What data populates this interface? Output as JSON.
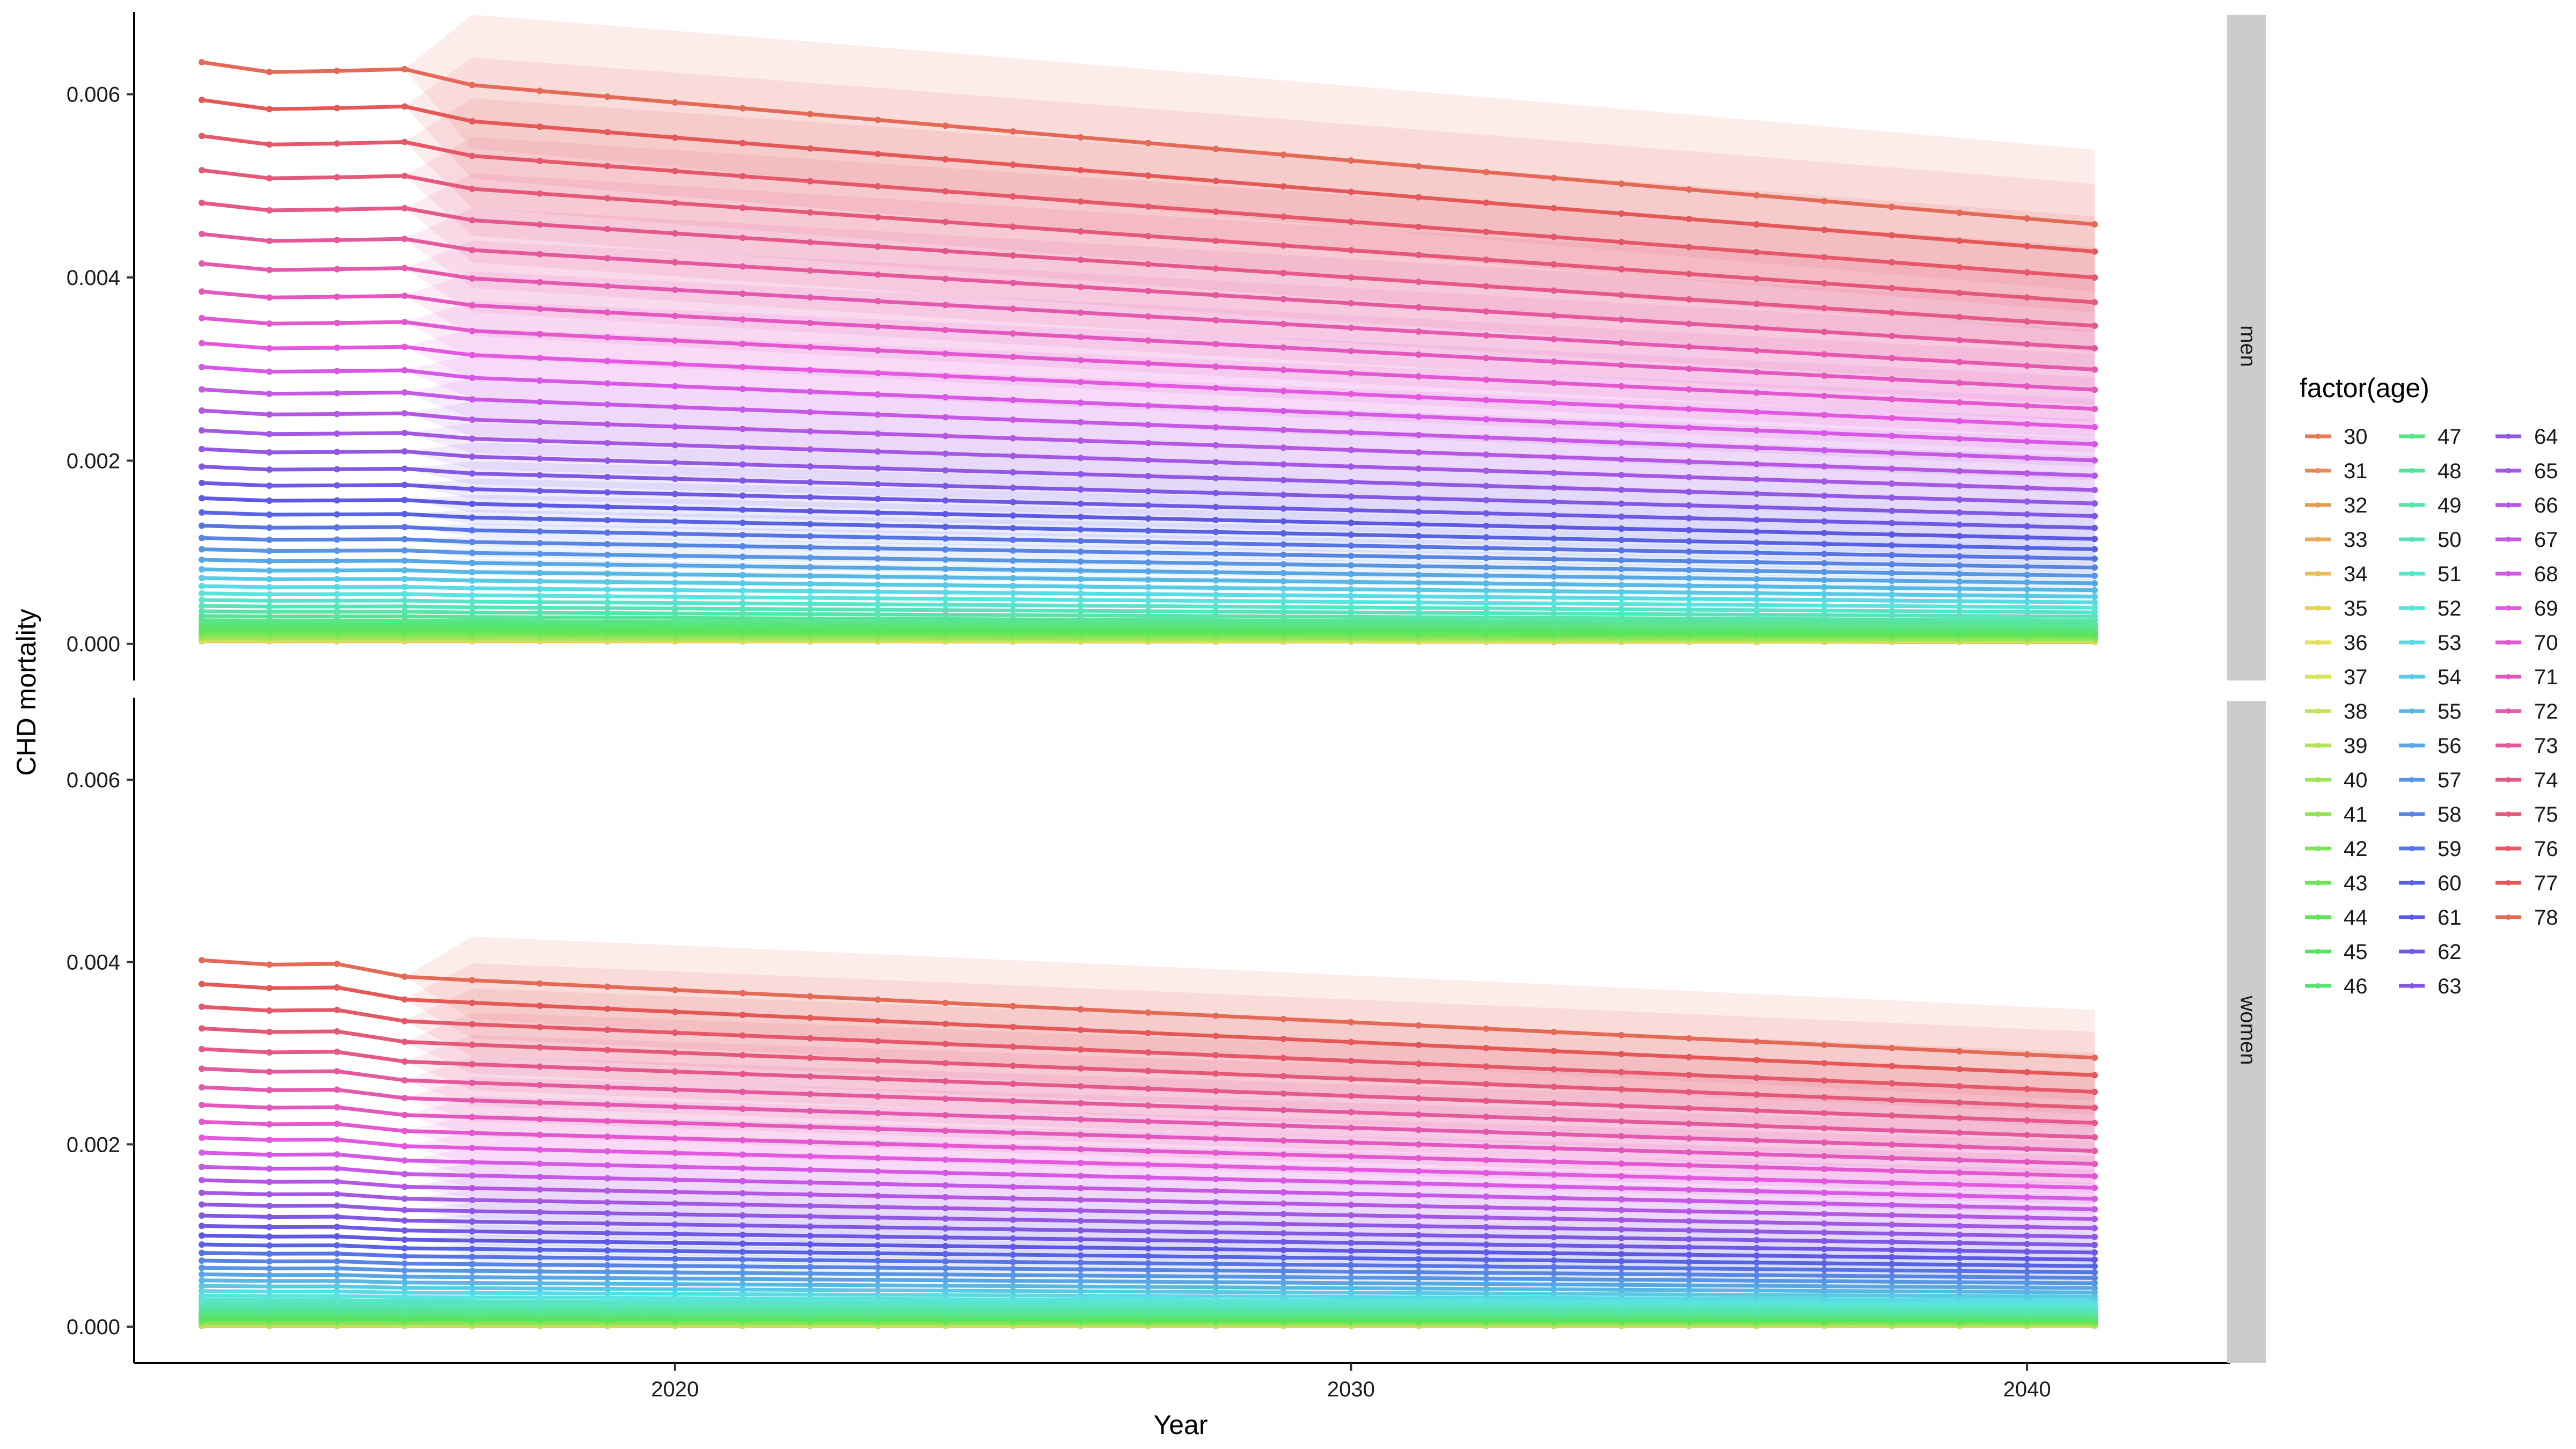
{
  "chart_data": {
    "type": "line",
    "title": "",
    "xlabel": "Year",
    "ylabel": "CHD mortality",
    "facet_strip_position": "right",
    "facets": [
      "men",
      "women"
    ],
    "xlim": [
      2012,
      2043
    ],
    "ylim": [
      -0.0004,
      0.0069
    ],
    "x_ticks": [
      2020,
      2030,
      2040
    ],
    "x_tick_labels": [
      "2020",
      "2030",
      "2040"
    ],
    "y_ticks": [
      0,
      0.002,
      0.004,
      0.006
    ],
    "y_tick_labels": [
      "0.000",
      "0.002",
      "0.004",
      "0.006"
    ],
    "grid": false,
    "ribbons": true,
    "ribbon_start_year": 2017,
    "x": [
      2013,
      2014,
      2015,
      2016,
      2017,
      2018,
      2019,
      2020,
      2021,
      2022,
      2023,
      2024,
      2025,
      2026,
      2027,
      2028,
      2029,
      2030,
      2031,
      2032,
      2033,
      2034,
      2035,
      2036,
      2037,
      2038,
      2039,
      2040,
      2041
    ],
    "legend": {
      "title": "factor(age)",
      "position": "right",
      "columns": 3,
      "entries": [
        "30",
        "31",
        "32",
        "33",
        "34",
        "35",
        "36",
        "37",
        "38",
        "39",
        "40",
        "41",
        "42",
        "43",
        "44",
        "45",
        "46",
        "47",
        "48",
        "49",
        "50",
        "51",
        "52",
        "53",
        "54",
        "55",
        "56",
        "57",
        "58",
        "59",
        "60",
        "61",
        "62",
        "63",
        "64",
        "65",
        "66",
        "67",
        "68",
        "69",
        "70",
        "71",
        "72",
        "73",
        "74",
        "75",
        "76",
        "77",
        "78"
      ]
    },
    "series_model": {
      "description": "Each age series y(year) = end_value + (start_value - end_value) * (2041 - year) / 24 for years >= 2017; years 2013-2016 follow the printed wiggle factors.",
      "ages": [
        30,
        78
      ],
      "men": {
        "values_2013_age78": 0.00635,
        "values_2017_age78": 0.0061,
        "values_2041_age78": 0.00458,
        "values_2013_age30": 3e-05,
        "values_2041_age30": 2e-05,
        "early_years_factor": [
          1.0,
          0.983,
          0.985,
          0.988
        ],
        "ribbon_upper_2041_age78": 0.0061
      },
      "women": {
        "values_2013_age78": 0.00402,
        "values_2017_age78": 0.0038,
        "values_2041_age78": 0.00295,
        "values_2013_age30": 1e-05,
        "values_2041_age30": 1e-05,
        "early_years_factor": [
          1.0,
          0.988,
          0.99,
          0.955
        ],
        "ribbon_upper_2041_age78": 0.0039
      }
    }
  }
}
